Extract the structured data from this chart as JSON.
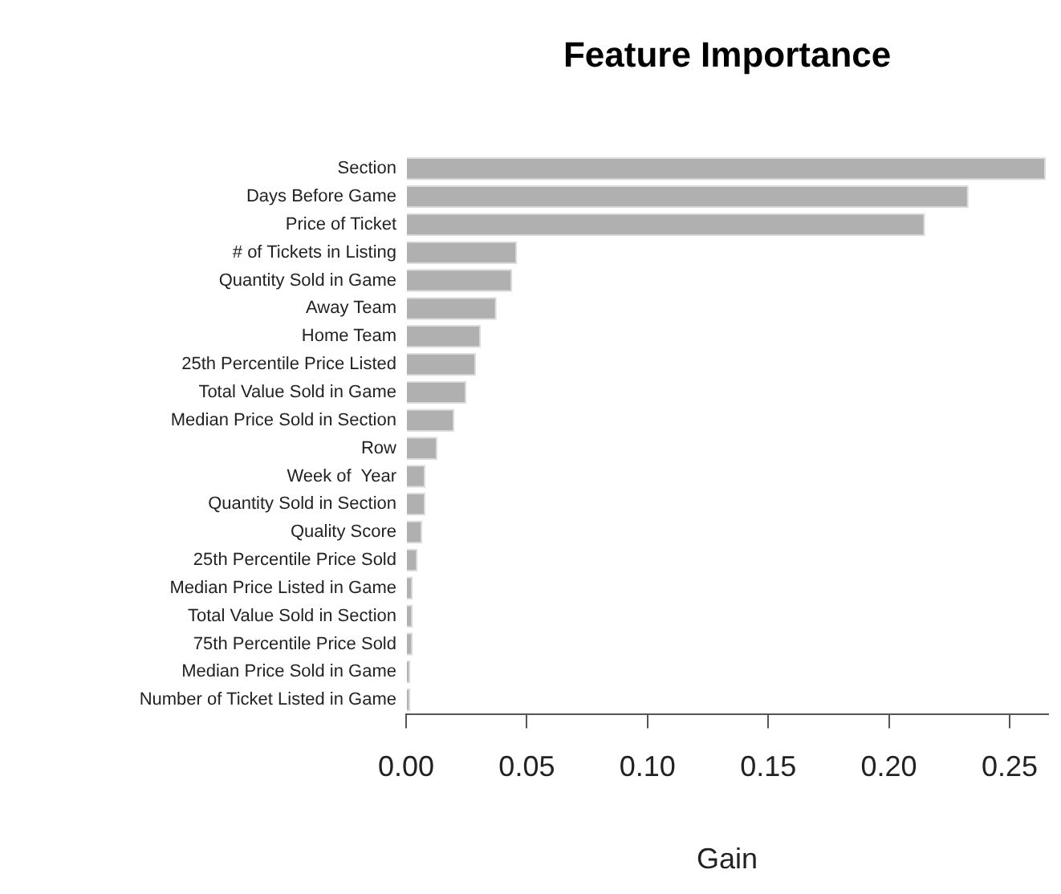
{
  "chart_data": {
    "type": "bar",
    "orientation": "horizontal",
    "title": "Feature Importance",
    "xlabel": "Gain",
    "categories": [
      "Section",
      "Days Before Game",
      "Price of Ticket",
      "# of Tickets in Listing",
      "Quantity Sold in Game",
      "Away Team",
      "Home Team",
      "25th Percentile Price Listed",
      "Total Value Sold in Game",
      "Median Price Sold in Section",
      "Row",
      "Week of  Year",
      "Quantity Sold in Section",
      "Quality Score",
      "25th Percentile Price Sold",
      "Median Price Listed in Game",
      "Total Value Sold in Section",
      "75th Percentile Price Sold",
      "Median Price Sold in Game",
      "Number of Ticket Listed in Game"
    ],
    "values": [
      0.265,
      0.233,
      0.215,
      0.046,
      0.044,
      0.0375,
      0.031,
      0.029,
      0.025,
      0.02,
      0.013,
      0.008,
      0.008,
      0.0067,
      0.0048,
      0.0028,
      0.0028,
      0.0028,
      0.0018,
      0.0018
    ],
    "color": "#b0b0b0",
    "xlim": [
      0,
      0.266
    ],
    "xticks": [
      {
        "value": 0,
        "label": "0.00"
      },
      {
        "value": 0.05,
        "label": "0.05"
      },
      {
        "value": 0.1,
        "label": "0.10"
      },
      {
        "value": 0.15,
        "label": "0.15"
      },
      {
        "value": 0.2,
        "label": "0.20"
      },
      {
        "value": 0.25,
        "label": "0.25"
      }
    ],
    "grid": false,
    "legend": false
  }
}
